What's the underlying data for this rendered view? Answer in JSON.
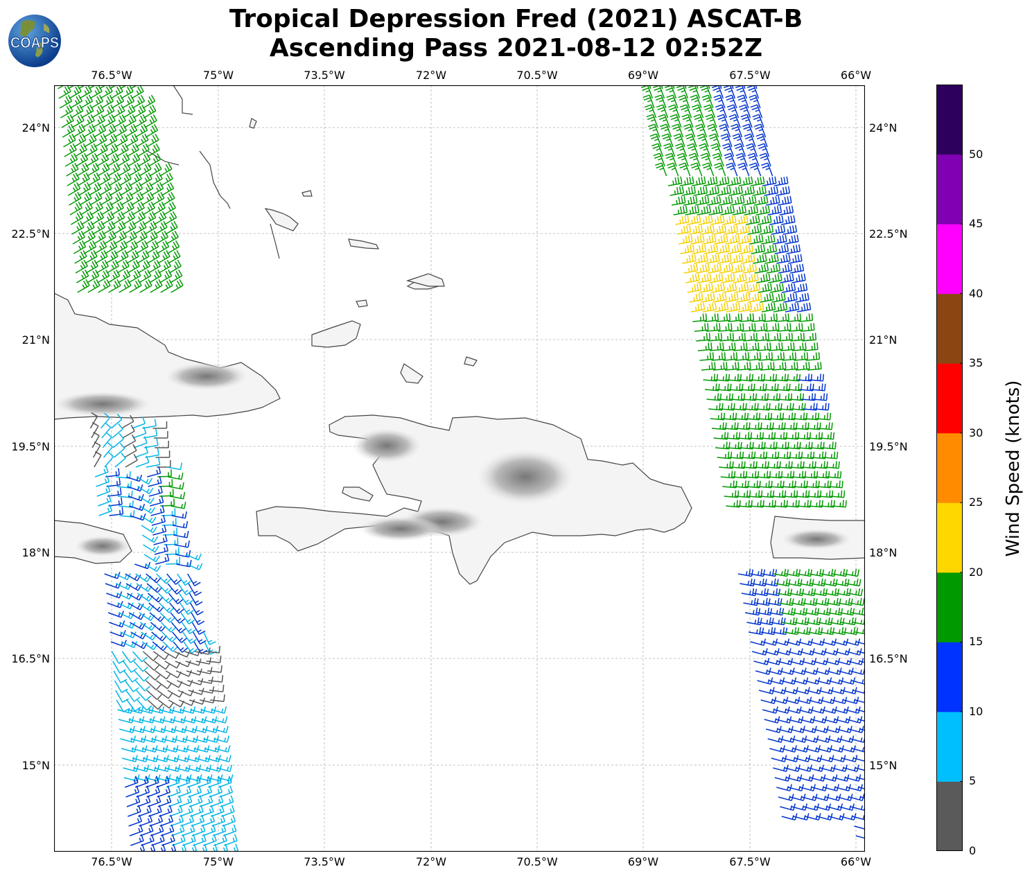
{
  "title": {
    "line1": "Tropical Depression Fred (2021) ASCAT-B",
    "line2": "Ascending Pass 2021-08-12 02:52Z"
  },
  "logo": {
    "text": "COAPS",
    "icon": "globe-icon"
  },
  "map": {
    "projection": "PlateCarree",
    "lon_range": [
      -77.8,
      -65.9
    ],
    "lat_range": [
      13.6,
      24.6
    ],
    "grid": true,
    "lon_ticks": [
      "76.5°W",
      "75°W",
      "73.5°W",
      "72°W",
      "70.5°W",
      "69°W",
      "67.5°W",
      "66°W"
    ],
    "lat_ticks": [
      "24°N",
      "22.5°N",
      "21°N",
      "19.5°N",
      "18°N",
      "16.5°N",
      "15°N"
    ],
    "land": [
      "Cuba",
      "Hispaniola",
      "Puerto Rico",
      "Jamaica",
      "Bahamas",
      "Turks and Caicos"
    ],
    "wind_swaths": [
      "west swath (77.8°W–74.3°W)",
      "east swath (69°W–65.9°W)"
    ]
  },
  "colorbar": {
    "label": "Wind Speed (knots)",
    "ticks": [
      "0",
      "5",
      "10",
      "15",
      "20",
      "25",
      "30",
      "35",
      "40",
      "45",
      "50"
    ],
    "bins": [
      {
        "from": 0,
        "to": 5,
        "color": "#5a5a5a"
      },
      {
        "from": 5,
        "to": 10,
        "color": "#00bfff"
      },
      {
        "from": 10,
        "to": 15,
        "color": "#0033ff"
      },
      {
        "from": 15,
        "to": 20,
        "color": "#009900"
      },
      {
        "from": 20,
        "to": 25,
        "color": "#ffd700"
      },
      {
        "from": 25,
        "to": 30,
        "color": "#ff8c00"
      },
      {
        "from": 30,
        "to": 35,
        "color": "#ff0000"
      },
      {
        "from": 35,
        "to": 40,
        "color": "#8b4513"
      },
      {
        "from": 40,
        "to": 45,
        "color": "#ff00ff"
      },
      {
        "from": 45,
        "to": 50,
        "color": "#8000b3"
      },
      {
        "from": 50,
        "to": 55,
        "color": "#2e005e"
      }
    ]
  }
}
